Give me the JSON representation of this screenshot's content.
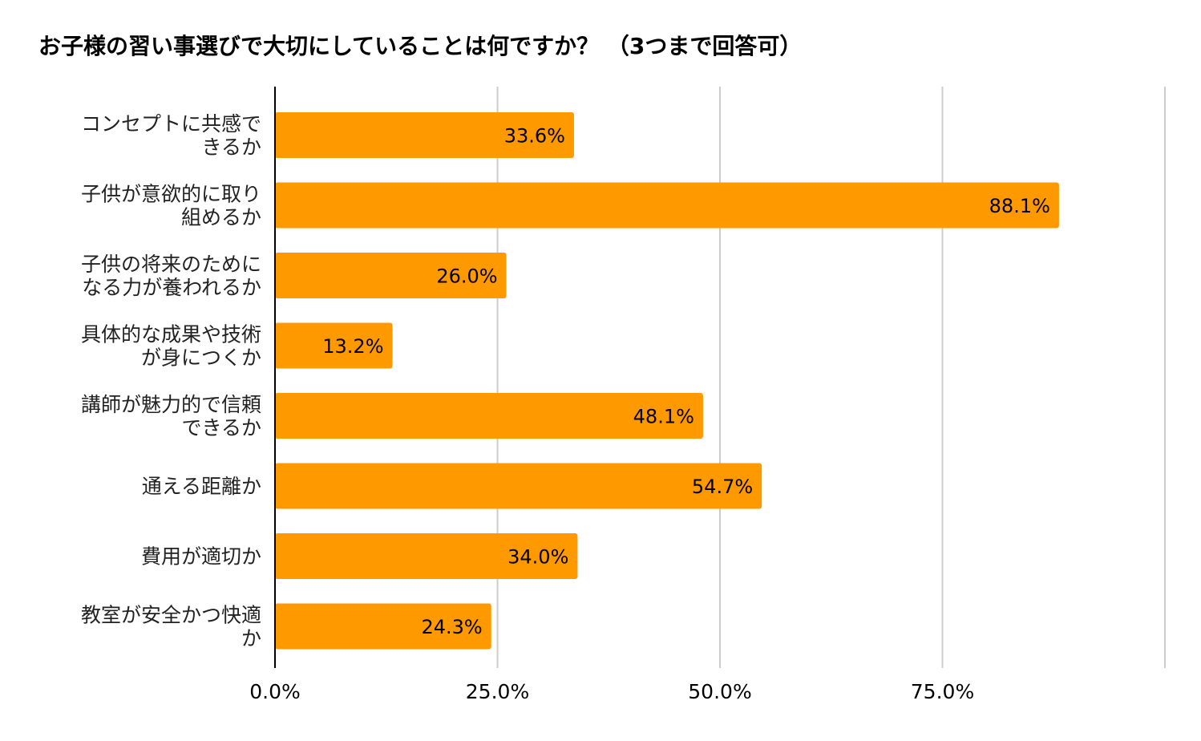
{
  "chart_data": {
    "type": "bar",
    "orientation": "horizontal",
    "title": "お子様の習い事選びで大切にしていることは何ですか？ （3つまで回答可）",
    "categories": [
      [
        "コンセプトに共感で",
        "きるか"
      ],
      [
        "子供が意欲的に取り",
        "組めるか"
      ],
      [
        "子供の将来のために",
        "なる力が養われるか"
      ],
      [
        "具体的な成果や技術",
        "が身につくか"
      ],
      [
        "講師が魅力的で信頼",
        "できるか"
      ],
      [
        "通える距離か"
      ],
      [
        "費用が適切か"
      ],
      [
        "教室が安全かつ快適",
        "か"
      ]
    ],
    "values": [
      33.6,
      88.1,
      26.0,
      13.2,
      48.1,
      54.7,
      34.0,
      24.3
    ],
    "value_labels": [
      "33.6%",
      "88.1%",
      "26.0%",
      "13.2%",
      "48.1%",
      "54.7%",
      "34.0%",
      "24.3%"
    ],
    "x_ticks": [
      0,
      25,
      50,
      75
    ],
    "x_tick_labels": [
      "0.0%",
      "25.0%",
      "50.0%",
      "75.0%"
    ],
    "xlim": [
      0,
      100
    ],
    "grid": true,
    "legend": "none",
    "colors": {
      "bar": "#FF9900",
      "grid": "#cccccc",
      "axis": "#000000"
    }
  }
}
